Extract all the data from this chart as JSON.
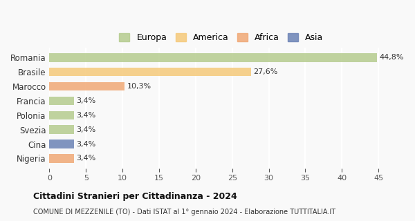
{
  "categories": [
    "Romania",
    "Brasile",
    "Marocco",
    "Francia",
    "Polonia",
    "Svezia",
    "Cina",
    "Nigeria"
  ],
  "values": [
    44.8,
    27.6,
    10.3,
    3.4,
    3.4,
    3.4,
    3.4,
    3.4
  ],
  "labels": [
    "44,8%",
    "27,6%",
    "10,3%",
    "3,4%",
    "3,4%",
    "3,4%",
    "3,4%",
    "3,4%"
  ],
  "colors": [
    "#b5cc8e",
    "#f5c97a",
    "#f0a875",
    "#b5cc8e",
    "#b5cc8e",
    "#b5cc8e",
    "#6b82b5",
    "#f0a875"
  ],
  "legend_labels": [
    "Europa",
    "America",
    "Africa",
    "Asia"
  ],
  "legend_colors": [
    "#b5cc8e",
    "#f5c97a",
    "#f0a875",
    "#6b82b5"
  ],
  "title": "Cittadini Stranieri per Cittadinanza - 2024",
  "subtitle": "COMUNE DI MEZZENILE (TO) - Dati ISTAT al 1° gennaio 2024 - Elaborazione TUTTITALIA.IT",
  "xlim": [
    0,
    47
  ],
  "xticks": [
    0,
    5,
    10,
    15,
    20,
    25,
    30,
    35,
    40,
    45
  ],
  "background_color": "#f9f9f9",
  "grid_color": "#ffffff",
  "bar_height": 0.6
}
